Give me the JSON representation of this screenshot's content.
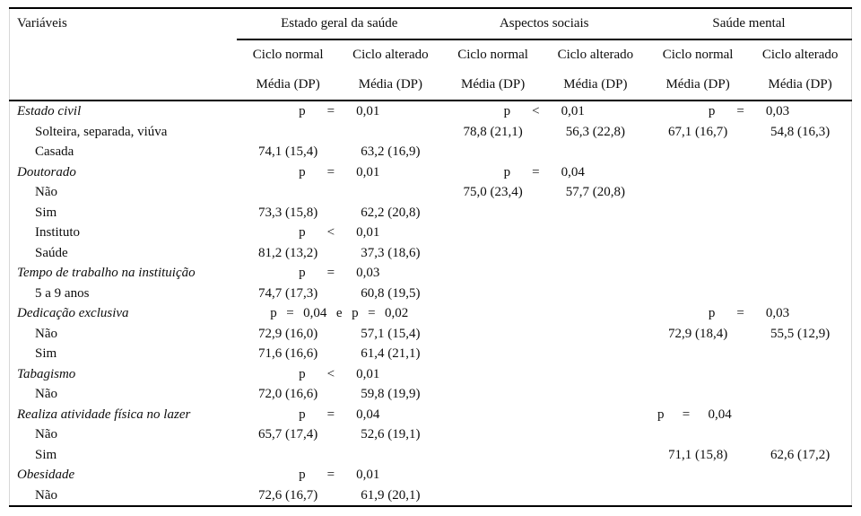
{
  "table": {
    "col1_header": "Variáveis",
    "groups": [
      {
        "label": "Estado geral da saúde"
      },
      {
        "label": "Aspectos sociais"
      },
      {
        "label": "Saúde mental"
      }
    ],
    "subheaders": [
      "Ciclo normal",
      "Ciclo alterado"
    ],
    "measure_label": "Média (DP)",
    "colors": {
      "rule": "#000000",
      "side_border": "#d8d8d8",
      "text": "#0d0d0d",
      "background": "#ffffff"
    },
    "rows": [
      {
        "label": "Estado civil",
        "variable": true,
        "cells": [
          {
            "p": "p = 0,01"
          },
          {
            "p": "p < 0,01"
          },
          {
            "p": "p = 0,03"
          }
        ]
      },
      {
        "label": "Solteira, separada, viúva",
        "variable": false,
        "cells": [
          null,
          {
            "v": [
              "78,8 (21,1)",
              "56,3 (22,8)"
            ]
          },
          {
            "v": [
              "67,1 (16,7)",
              "54,8 (16,3)"
            ]
          }
        ]
      },
      {
        "label": "Casada",
        "variable": false,
        "cells": [
          {
            "v": [
              "74,1 (15,4)",
              "63,2 (16,9)"
            ]
          },
          null,
          null
        ]
      },
      {
        "label": "Doutorado",
        "variable": true,
        "cells": [
          {
            "p": "p = 0,01"
          },
          {
            "p": "p = 0,04"
          },
          null
        ]
      },
      {
        "label": "Não",
        "variable": false,
        "cells": [
          null,
          {
            "v": [
              "75,0 (23,4)",
              "57,7 (20,8)"
            ]
          },
          null
        ]
      },
      {
        "label": "Sim",
        "variable": false,
        "cells": [
          {
            "v": [
              "73,3 (15,8)",
              "62,2 (20,8)"
            ]
          },
          null,
          null
        ]
      },
      {
        "label": "Instituto",
        "variable": false,
        "cells": [
          {
            "p": "p < 0,01"
          },
          null,
          null
        ]
      },
      {
        "label": "Saúde",
        "variable": false,
        "cells": [
          {
            "v": [
              "81,2 (13,2)",
              "37,3 (18,6)"
            ]
          },
          null,
          null
        ]
      },
      {
        "label": "Tempo de trabalho na instituição",
        "variable": true,
        "cells": [
          {
            "p": "p = 0,03"
          },
          null,
          null
        ]
      },
      {
        "label": "5 a 9 anos",
        "variable": false,
        "cells": [
          {
            "v": [
              "74,7 (17,3)",
              "60,8 (19,5)"
            ]
          },
          null,
          null
        ]
      },
      {
        "label": "Dedicação exclusiva",
        "variable": true,
        "cells": [
          {
            "p": "p = 0,04 e p = 0,02"
          },
          null,
          {
            "p": "p = 0,03"
          }
        ]
      },
      {
        "label": "Não",
        "variable": false,
        "cells": [
          {
            "v": [
              "72,9 (16,0)",
              "57,1 (15,4)"
            ]
          },
          null,
          {
            "v": [
              "72,9 (18,4)",
              "55,5 (12,9)"
            ]
          }
        ]
      },
      {
        "label": "Sim",
        "variable": false,
        "cells": [
          {
            "v": [
              "71,6 (16,6)",
              "61,4 (21,1)"
            ]
          },
          null,
          null
        ]
      },
      {
        "label": "Tabagismo",
        "variable": true,
        "cells": [
          {
            "p": "p < 0,01"
          },
          null,
          null
        ]
      },
      {
        "label": "Não",
        "variable": false,
        "cells": [
          {
            "v": [
              "72,0 (16,6)",
              "59,8 (19,9)"
            ]
          },
          null,
          null
        ]
      },
      {
        "label": "Realiza atividade física no lazer",
        "variable": true,
        "cells": [
          {
            "p": "p = 0,04"
          },
          null,
          {
            "p": "p = 0,04",
            "align": "left"
          }
        ]
      },
      {
        "label": "Não",
        "variable": false,
        "cells": [
          {
            "v": [
              "65,7 (17,4)",
              "52,6 (19,1)"
            ]
          },
          null,
          null
        ]
      },
      {
        "label": "Sim",
        "variable": false,
        "cells": [
          null,
          null,
          {
            "v": [
              "71,1 (15,8)",
              "62,6 (17,2)"
            ]
          }
        ]
      },
      {
        "label": "Obesidade",
        "variable": true,
        "cells": [
          {
            "p": "p = 0,01"
          },
          null,
          null
        ]
      },
      {
        "label": "Não",
        "variable": false,
        "cells": [
          {
            "v": [
              "72,6 (16,7)",
              "61,9 (20,1)"
            ]
          },
          null,
          null
        ]
      }
    ]
  }
}
